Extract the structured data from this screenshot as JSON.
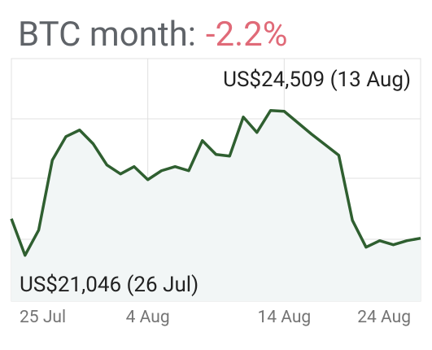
{
  "chart_data": {
    "type": "line",
    "title": "BTC month:",
    "change": "-2.2%",
    "change_color": "#e06a78",
    "max_label": "US$24,509 (13 Aug)",
    "min_label": "US$21,046 (26 Jul)",
    "categories": [
      "25 Jul",
      null,
      null,
      null,
      null,
      null,
      null,
      null,
      null,
      null,
      "4 Aug",
      null,
      null,
      null,
      null,
      null,
      null,
      null,
      null,
      null,
      "14 Aug",
      null,
      null,
      null,
      null,
      null,
      null,
      null,
      null,
      null,
      "24 Aug"
    ],
    "series": [
      {
        "color": "#2f5f30",
        "values": [
          21921,
          21046,
          21649,
          23322,
          23886,
          24042,
          23711,
          23206,
          22992,
          23167,
          22855,
          23069,
          23167,
          23069,
          23789,
          23458,
          23420,
          24353,
          23984,
          24509,
          24490,
          24217,
          23945,
          23692,
          23439,
          21883,
          21241,
          21396,
          21299,
          21396,
          21455
        ]
      }
    ],
    "ylim": [
      19950,
      25750
    ],
    "grid": true
  }
}
